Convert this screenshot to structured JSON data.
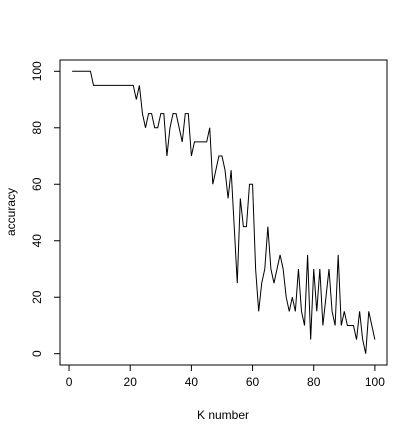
{
  "chart_data": {
    "type": "line",
    "x_label": "K number",
    "y_label": "accuracy",
    "x": [
      1,
      2,
      3,
      4,
      5,
      6,
      7,
      8,
      9,
      10,
      11,
      12,
      13,
      14,
      15,
      16,
      17,
      18,
      19,
      20,
      21,
      22,
      23,
      24,
      25,
      26,
      27,
      28,
      29,
      30,
      31,
      32,
      33,
      34,
      35,
      36,
      37,
      38,
      39,
      40,
      41,
      42,
      43,
      44,
      45,
      46,
      47,
      48,
      49,
      50,
      51,
      52,
      53,
      54,
      55,
      56,
      57,
      58,
      59,
      60,
      61,
      62,
      63,
      64,
      65,
      66,
      67,
      68,
      69,
      70,
      71,
      72,
      73,
      74,
      75,
      76,
      77,
      78,
      79,
      80,
      81,
      82,
      83,
      84,
      85,
      86,
      87,
      88,
      89,
      90,
      91,
      92,
      93,
      94,
      95,
      96,
      97,
      98,
      99,
      100
    ],
    "series": [
      {
        "color": "#000000",
        "values": [
          100,
          100,
          100,
          100,
          100,
          100,
          100,
          95,
          95,
          95,
          95,
          95,
          95,
          95,
          95,
          95,
          95,
          95,
          95,
          95,
          95,
          90,
          95,
          85,
          80,
          85,
          85,
          80,
          80,
          85,
          85,
          70,
          80,
          85,
          85,
          80,
          75,
          85,
          85,
          70,
          75,
          75,
          75,
          75,
          75,
          80,
          60,
          65,
          70,
          70,
          65,
          55,
          65,
          45,
          25,
          55,
          45,
          45,
          60,
          60,
          30,
          15,
          25,
          30,
          45,
          30,
          25,
          30,
          35,
          30,
          20,
          15,
          20,
          15,
          30,
          15,
          10,
          35,
          5,
          30,
          15,
          30,
          10,
          20,
          30,
          15,
          10,
          35,
          10,
          15,
          10,
          10,
          10,
          5,
          15,
          5,
          0,
          15,
          10,
          5
        ]
      }
    ],
    "xlim": [
      -2.96,
      103.96
    ],
    "ylim": [
      -4,
      104
    ],
    "xticks": [
      0,
      20,
      40,
      60,
      80,
      100
    ],
    "yticks": [
      0,
      20,
      40,
      60,
      80,
      100
    ],
    "grid": false
  }
}
